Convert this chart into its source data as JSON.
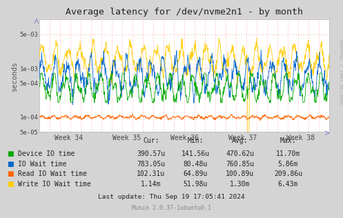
{
  "title": "Average latency for /dev/nvme2n1 - by month",
  "ylabel": "seconds",
  "xlabel_ticks": [
    "Week 34",
    "Week 35",
    "Week 36",
    "Week 37",
    "Week 38"
  ],
  "ylim_log": [
    5e-05,
    0.01
  ],
  "yticks": [
    5e-05,
    0.0001,
    0.0005,
    0.001,
    0.005
  ],
  "ytick_labels": [
    "5e-05",
    "1e-04",
    "5e-04",
    "1e-03",
    "5e-03"
  ],
  "bg_color": "#d4d4d4",
  "plot_bg_color": "#ffffff",
  "grid_color_major": "#ffffff",
  "grid_color_dotted": "#ff9999",
  "colors": {
    "device_io": "#00aa00",
    "io_wait": "#0066cc",
    "read_io_wait": "#ff6600",
    "write_io_wait": "#ffcc00"
  },
  "legend": [
    {
      "label": "Device IO time",
      "color": "#00aa00"
    },
    {
      "label": "IO Wait time",
      "color": "#0066cc"
    },
    {
      "label": "Read IO Wait time",
      "color": "#ff6600"
    },
    {
      "label": "Write IO Wait time",
      "color": "#ffcc00"
    }
  ],
  "stats": {
    "headers": [
      "Cur:",
      "Min:",
      "Avg:",
      "Max:"
    ],
    "rows": [
      [
        "390.57u",
        "141.56u",
        "470.62u",
        "11.70m"
      ],
      [
        "783.05u",
        "80.48u",
        "760.85u",
        "5.86m"
      ],
      [
        "102.31u",
        "64.89u",
        "100.89u",
        "209.86u"
      ],
      [
        "1.14m",
        "51.98u",
        "1.30m",
        "6.43m"
      ]
    ]
  },
  "footer": "Last update: Thu Sep 19 17:05:41 2024",
  "munin_version": "Munin 2.0.37-1ubuntu0.1",
  "rrdtool_label": "RRDTOOL / TOBI OETIKER",
  "n_points": 800,
  "seed": 42
}
